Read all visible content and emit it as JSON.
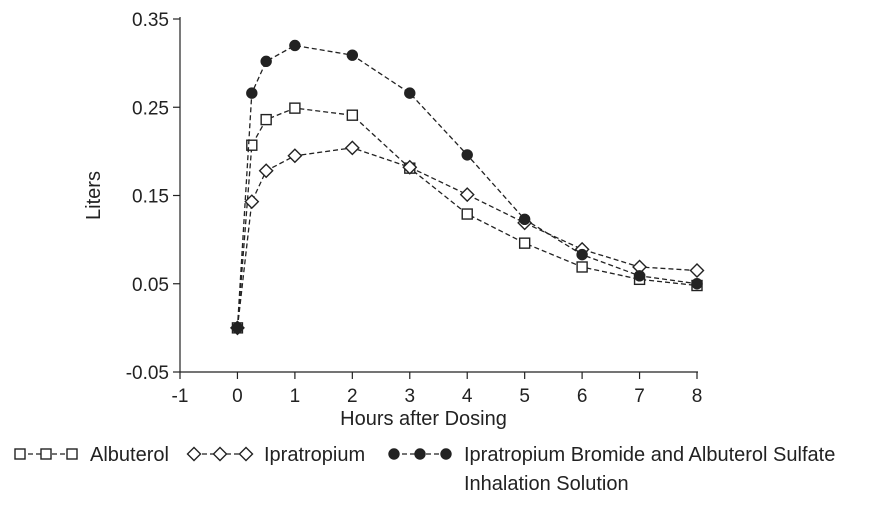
{
  "chart_data": {
    "type": "line",
    "title": "",
    "xlabel": "Hours after Dosing",
    "ylabel": "Liters",
    "xlim": [
      -1,
      8
    ],
    "ylim": [
      -0.05,
      0.35
    ],
    "x_ticks": [
      -1,
      0,
      1,
      2,
      3,
      4,
      5,
      6,
      7,
      8
    ],
    "x_tick_labels": [
      "-1",
      "0",
      "1",
      "2",
      "3",
      "4",
      "5",
      "6",
      "7",
      "8"
    ],
    "y_ticks": [
      -0.05,
      0.05,
      0.15,
      0.25,
      0.35
    ],
    "y_tick_labels": [
      "-0.05",
      "0.05",
      "0.15",
      "0.25",
      "0.35"
    ],
    "grid": false,
    "legend_position": "bottom",
    "series": [
      {
        "name": "Albuterol",
        "marker": "open-square",
        "line": "dashed",
        "color": "#222222",
        "x": [
          0,
          0.25,
          0.5,
          1,
          2,
          3,
          4,
          5,
          6,
          7,
          8
        ],
        "values": [
          0.0,
          0.207,
          0.236,
          0.249,
          0.241,
          0.181,
          0.129,
          0.096,
          0.069,
          0.055,
          0.048
        ]
      },
      {
        "name": "Ipratropium",
        "marker": "open-diamond",
        "line": "dashed",
        "color": "#222222",
        "x": [
          0,
          0.25,
          0.5,
          1,
          2,
          3,
          4,
          5,
          6,
          7,
          8
        ],
        "values": [
          0.0,
          0.143,
          0.178,
          0.195,
          0.204,
          0.182,
          0.151,
          0.119,
          0.089,
          0.069,
          0.065
        ]
      },
      {
        "name": "Ipratropium Bromide and Albuterol Sulfate Inhalation Solution",
        "legend_lines": [
          "Ipratropium Bromide and Albuterol Sulfate",
          "Inhalation Solution"
        ],
        "marker": "filled-circle",
        "line": "dashed",
        "color": "#222222",
        "x": [
          0,
          0.25,
          0.5,
          1,
          2,
          3,
          4,
          5,
          6,
          7,
          8
        ],
        "values": [
          0.0,
          0.266,
          0.302,
          0.32,
          0.309,
          0.266,
          0.196,
          0.123,
          0.083,
          0.059,
          0.05
        ]
      }
    ]
  }
}
